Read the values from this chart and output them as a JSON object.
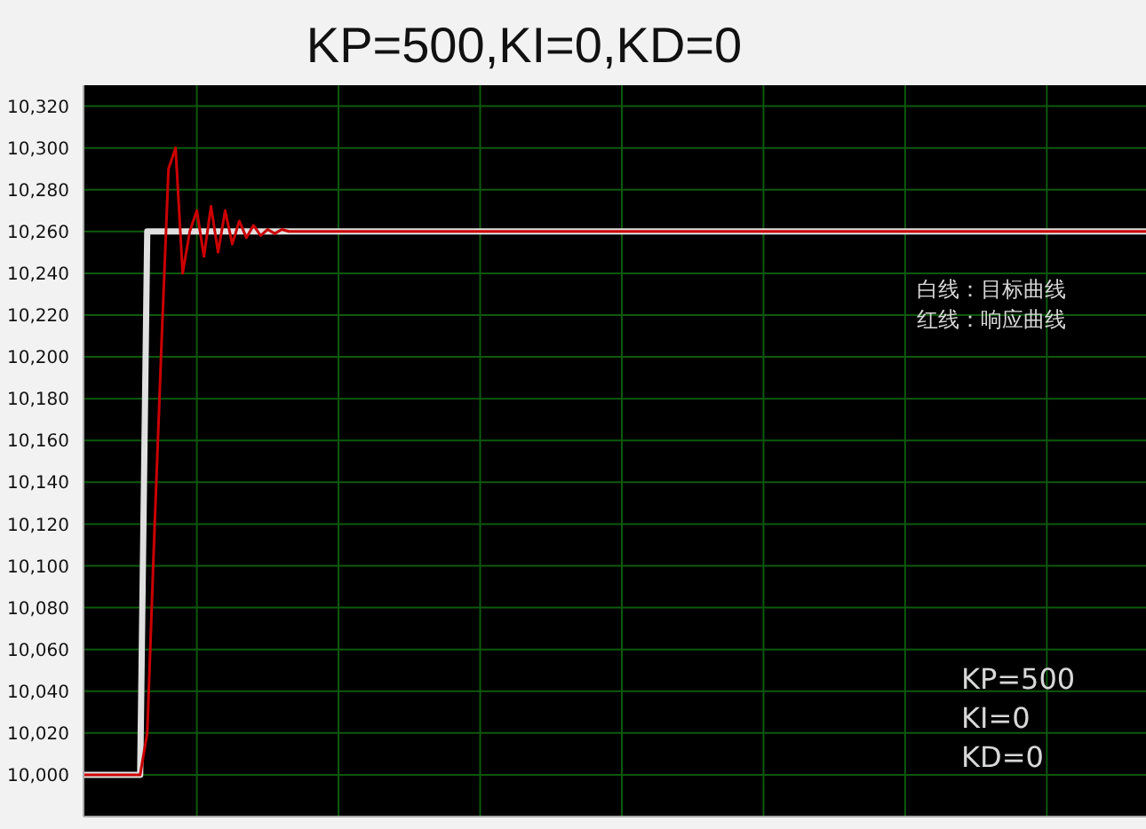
{
  "chart_data": {
    "type": "line",
    "title": "KP=500,KI=0,KD=0",
    "categories": [
      null,
      null,
      null,
      null,
      null,
      null,
      null,
      null,
      null,
      null,
      null,
      null,
      null,
      null,
      null,
      null,
      null,
      null,
      null,
      null,
      null,
      null,
      null,
      null,
      null,
      null,
      null,
      null,
      null,
      null,
      null,
      null,
      null,
      null,
      null,
      null,
      null,
      null,
      null,
      null,
      null,
      null,
      null,
      null,
      null,
      null,
      null,
      null,
      null,
      null,
      null,
      null,
      null,
      null,
      null,
      null,
      null,
      null,
      null,
      null,
      null,
      null,
      null,
      null,
      null,
      null,
      null,
      null,
      null,
      null,
      null,
      null,
      null,
      null,
      null,
      null,
      null,
      null,
      null,
      null,
      null,
      null,
      null,
      null,
      null,
      null,
      null,
      null,
      null,
      null,
      null,
      null,
      null,
      null,
      null,
      null,
      null,
      null,
      null,
      null,
      null,
      null,
      null,
      null,
      null,
      null,
      null,
      null,
      null,
      null,
      null,
      null,
      null,
      null,
      null,
      null,
      null,
      null,
      null,
      null,
      null,
      null,
      null,
      null,
      null,
      null,
      null,
      null,
      null,
      null,
      null,
      null,
      null,
      null,
      null,
      null,
      null,
      null,
      null,
      null,
      null,
      null,
      null,
      null,
      null,
      null,
      null,
      null,
      null,
      null,
      null
    ],
    "series": [
      {
        "color": "#e0e0e0",
        "values": [
          10000,
          10000,
          10000,
          10000,
          10000,
          10000,
          10000,
          10000,
          10000,
          10260,
          10260,
          10260,
          10260,
          10260,
          10260,
          10260,
          10260,
          10260,
          10260,
          10260,
          10260,
          10260,
          10260,
          10260,
          10260,
          10260,
          10260,
          10260,
          10260,
          10260,
          10260,
          10260,
          10260,
          10260,
          10260,
          10260,
          10260,
          10260,
          10260,
          10260,
          10260,
          10260,
          10260,
          10260,
          10260,
          10260,
          10260,
          10260,
          10260,
          10260,
          10260,
          10260,
          10260,
          10260,
          10260,
          10260,
          10260,
          10260,
          10260,
          10260,
          10260,
          10260,
          10260,
          10260,
          10260,
          10260,
          10260,
          10260,
          10260,
          10260,
          10260,
          10260,
          10260,
          10260,
          10260,
          10260,
          10260,
          10260,
          10260,
          10260,
          10260,
          10260,
          10260,
          10260,
          10260,
          10260,
          10260,
          10260,
          10260,
          10260,
          10260,
          10260,
          10260,
          10260,
          10260,
          10260,
          10260,
          10260,
          10260,
          10260,
          10260,
          10260,
          10260,
          10260,
          10260,
          10260,
          10260,
          10260,
          10260,
          10260,
          10260,
          10260,
          10260,
          10260,
          10260,
          10260,
          10260,
          10260,
          10260,
          10260,
          10260,
          10260,
          10260,
          10260,
          10260,
          10260,
          10260,
          10260,
          10260,
          10260,
          10260,
          10260,
          10260,
          10260,
          10260,
          10260,
          10260,
          10260,
          10260,
          10260,
          10260,
          10260,
          10260,
          10260,
          10260,
          10260,
          10260,
          10260,
          10260,
          10260,
          10260
        ]
      },
      {
        "color": "#cc0000",
        "values": [
          10000,
          10000,
          10000,
          10000,
          10000,
          10000,
          10000,
          10000,
          10000,
          10020,
          10115,
          10205,
          10290,
          10300,
          10240,
          10260,
          10270,
          10248,
          10272,
          10250,
          10270,
          10254,
          10265,
          10257,
          10263,
          10258,
          10261,
          10259,
          10261,
          10260,
          10260,
          10260,
          10260,
          10260,
          10260,
          10260,
          10260,
          10260,
          10260,
          10260,
          10260,
          10260,
          10260,
          10260,
          10260,
          10260,
          10260,
          10260,
          10260,
          10260,
          10260,
          10260,
          10260,
          10260,
          10260,
          10260,
          10260,
          10260,
          10260,
          10260,
          10260,
          10260,
          10260,
          10260,
          10260,
          10260,
          10260,
          10260,
          10260,
          10260,
          10260,
          10260,
          10260,
          10260,
          10260,
          10260,
          10260,
          10260,
          10260,
          10260,
          10260,
          10260,
          10260,
          10260,
          10260,
          10260,
          10260,
          10260,
          10260,
          10260,
          10260,
          10260,
          10260,
          10260,
          10260,
          10260,
          10260,
          10260,
          10260,
          10260,
          10260,
          10260,
          10260,
          10260,
          10260,
          10260,
          10260,
          10260,
          10260,
          10260,
          10260,
          10260,
          10260,
          10260,
          10260,
          10260,
          10260,
          10260,
          10260,
          10260,
          10260,
          10260,
          10260,
          10260,
          10260,
          10260,
          10260,
          10260,
          10260,
          10260,
          10260,
          10260,
          10260,
          10260,
          10260,
          10260,
          10260,
          10260,
          10260,
          10260,
          10260,
          10260,
          10260,
          10260,
          10260,
          10260,
          10260,
          10260,
          10260,
          10260,
          10260
        ]
      }
    ],
    "ylim": [
      9980,
      10330
    ],
    "yticks": [
      {
        "value": 10000,
        "label": "10,000"
      },
      {
        "value": 10020,
        "label": "10,020"
      },
      {
        "value": 10040,
        "label": "10,040"
      },
      {
        "value": 10060,
        "label": "10,060"
      },
      {
        "value": 10080,
        "label": "10,080"
      },
      {
        "value": 10100,
        "label": "10,100"
      },
      {
        "value": 10120,
        "label": "10,120"
      },
      {
        "value": 10140,
        "label": "10,140"
      },
      {
        "value": 10160,
        "label": "10,160"
      },
      {
        "value": 10180,
        "label": "10,180"
      },
      {
        "value": 10200,
        "label": "10,200"
      },
      {
        "value": 10220,
        "label": "10,220"
      },
      {
        "value": 10240,
        "label": "10,240"
      },
      {
        "value": 10260,
        "label": "10,260"
      },
      {
        "value": 10280,
        "label": "10,280"
      },
      {
        "value": 10300,
        "label": "10,300"
      },
      {
        "value": 10320,
        "label": "10,320"
      }
    ],
    "grid": true,
    "marker": "none",
    "line_style": "solid",
    "annotations": [
      "白线：目标曲线",
      "红线：响应曲线",
      "KP=500",
      "KI=0",
      "KD=0"
    ]
  }
}
